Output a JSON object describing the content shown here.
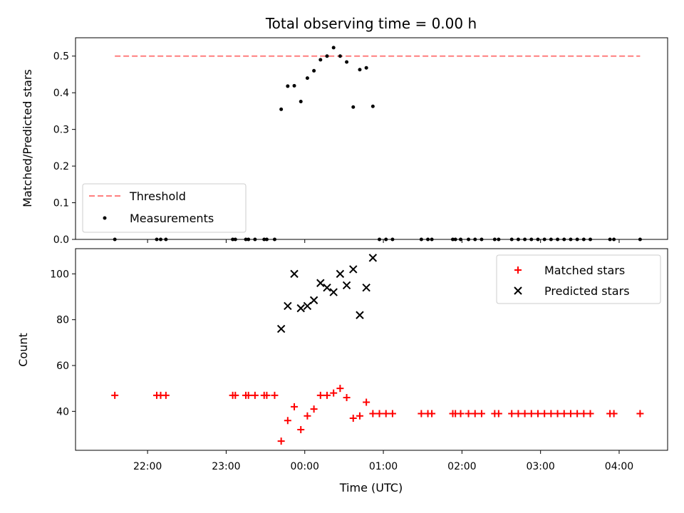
{
  "chart_data": [
    {
      "type": "scatter",
      "title": "Total observing time = 0.00 h",
      "xlabel": "",
      "ylabel": "Matched/Predicted stars",
      "xlim": [
        "21:05",
        "04:37"
      ],
      "ylim": [
        0,
        0.55
      ],
      "yticks": [
        "0.0",
        "0.1",
        "0.2",
        "0.3",
        "0.4",
        "0.5"
      ],
      "xticks": [
        "22:00",
        "23:00",
        "00:00",
        "01:00",
        "02:00",
        "03:00",
        "04:00"
      ],
      "legend_position": "lower-left",
      "threshold": {
        "name": "Threshold",
        "value": 0.5,
        "x_start": "21:35",
        "x_end": "04:16",
        "color": "#ff7f7f",
        "style": "dashed"
      },
      "series": [
        {
          "name": "Measurements",
          "color": "#000000",
          "marker": "dot",
          "points": [
            {
              "x": "21:35",
              "y": 0.0
            },
            {
              "x": "22:07",
              "y": 0.0
            },
            {
              "x": "22:10",
              "y": 0.0
            },
            {
              "x": "22:14",
              "y": 0.0
            },
            {
              "x": "23:05",
              "y": 0.0
            },
            {
              "x": "23:07",
              "y": 0.0
            },
            {
              "x": "23:15",
              "y": 0.0
            },
            {
              "x": "23:17",
              "y": 0.0
            },
            {
              "x": "23:22",
              "y": 0.0
            },
            {
              "x": "23:29",
              "y": 0.0
            },
            {
              "x": "23:31",
              "y": 0.0
            },
            {
              "x": "23:37",
              "y": 0.0
            },
            {
              "x": "23:42",
              "y": 0.355
            },
            {
              "x": "23:47",
              "y": 0.418
            },
            {
              "x": "23:52",
              "y": 0.419
            },
            {
              "x": "23:57",
              "y": 0.376
            },
            {
              "x": "00:02",
              "y": 0.44
            },
            {
              "x": "00:07",
              "y": 0.46
            },
            {
              "x": "00:12",
              "y": 0.49
            },
            {
              "x": "00:17",
              "y": 0.5
            },
            {
              "x": "00:22",
              "y": 0.523
            },
            {
              "x": "00:27",
              "y": 0.5
            },
            {
              "x": "00:32",
              "y": 0.484
            },
            {
              "x": "00:37",
              "y": 0.361
            },
            {
              "x": "00:42",
              "y": 0.463
            },
            {
              "x": "00:47",
              "y": 0.468
            },
            {
              "x": "00:52",
              "y": 0.363
            },
            {
              "x": "00:57",
              "y": 0.0
            },
            {
              "x": "01:02",
              "y": 0.0
            },
            {
              "x": "01:07",
              "y": 0.0
            },
            {
              "x": "01:29",
              "y": 0.0
            },
            {
              "x": "01:34",
              "y": 0.0
            },
            {
              "x": "01:37",
              "y": 0.0
            },
            {
              "x": "01:53",
              "y": 0.0
            },
            {
              "x": "01:55",
              "y": 0.0
            },
            {
              "x": "01:59",
              "y": 0.0
            },
            {
              "x": "02:05",
              "y": 0.0
            },
            {
              "x": "02:10",
              "y": 0.0
            },
            {
              "x": "02:15",
              "y": 0.0
            },
            {
              "x": "02:25",
              "y": 0.0
            },
            {
              "x": "02:28",
              "y": 0.0
            },
            {
              "x": "02:38",
              "y": 0.0
            },
            {
              "x": "02:43",
              "y": 0.0
            },
            {
              "x": "02:48",
              "y": 0.0
            },
            {
              "x": "02:53",
              "y": 0.0
            },
            {
              "x": "02:58",
              "y": 0.0
            },
            {
              "x": "03:03",
              "y": 0.0
            },
            {
              "x": "03:08",
              "y": 0.0
            },
            {
              "x": "03:13",
              "y": 0.0
            },
            {
              "x": "03:18",
              "y": 0.0
            },
            {
              "x": "03:23",
              "y": 0.0
            },
            {
              "x": "03:28",
              "y": 0.0
            },
            {
              "x": "03:33",
              "y": 0.0
            },
            {
              "x": "03:38",
              "y": 0.0
            },
            {
              "x": "03:53",
              "y": 0.0
            },
            {
              "x": "03:56",
              "y": 0.0
            },
            {
              "x": "04:16",
              "y": 0.0
            }
          ]
        }
      ]
    },
    {
      "type": "scatter",
      "title": "",
      "xlabel": "Time (UTC)",
      "ylabel": "Count",
      "xlim": [
        "21:05",
        "04:37"
      ],
      "ylim": [
        23,
        111
      ],
      "yticks": [
        "40",
        "60",
        "80",
        "100"
      ],
      "xticks": [
        "22:00",
        "23:00",
        "00:00",
        "01:00",
        "02:00",
        "03:00",
        "04:00"
      ],
      "legend_position": "upper-right",
      "series": [
        {
          "name": "Matched stars",
          "color": "#ff0000",
          "marker": "plus",
          "points": [
            {
              "x": "21:35",
              "y": 47
            },
            {
              "x": "22:07",
              "y": 47
            },
            {
              "x": "22:10",
              "y": 47
            },
            {
              "x": "22:14",
              "y": 47
            },
            {
              "x": "23:05",
              "y": 47
            },
            {
              "x": "23:07",
              "y": 47
            },
            {
              "x": "23:15",
              "y": 47
            },
            {
              "x": "23:17",
              "y": 47
            },
            {
              "x": "23:22",
              "y": 47
            },
            {
              "x": "23:29",
              "y": 47
            },
            {
              "x": "23:31",
              "y": 47
            },
            {
              "x": "23:37",
              "y": 47
            },
            {
              "x": "23:42",
              "y": 27
            },
            {
              "x": "23:47",
              "y": 36
            },
            {
              "x": "23:52",
              "y": 42
            },
            {
              "x": "23:57",
              "y": 32
            },
            {
              "x": "00:02",
              "y": 38
            },
            {
              "x": "00:07",
              "y": 41
            },
            {
              "x": "00:12",
              "y": 47
            },
            {
              "x": "00:17",
              "y": 47
            },
            {
              "x": "00:22",
              "y": 48
            },
            {
              "x": "00:27",
              "y": 50
            },
            {
              "x": "00:32",
              "y": 46
            },
            {
              "x": "00:37",
              "y": 37
            },
            {
              "x": "00:42",
              "y": 38
            },
            {
              "x": "00:47",
              "y": 44
            },
            {
              "x": "00:52",
              "y": 39
            },
            {
              "x": "00:57",
              "y": 39
            },
            {
              "x": "01:02",
              "y": 39
            },
            {
              "x": "01:07",
              "y": 39
            },
            {
              "x": "01:29",
              "y": 39
            },
            {
              "x": "01:34",
              "y": 39
            },
            {
              "x": "01:37",
              "y": 39
            },
            {
              "x": "01:53",
              "y": 39
            },
            {
              "x": "01:55",
              "y": 39
            },
            {
              "x": "01:59",
              "y": 39
            },
            {
              "x": "02:05",
              "y": 39
            },
            {
              "x": "02:10",
              "y": 39
            },
            {
              "x": "02:15",
              "y": 39
            },
            {
              "x": "02:25",
              "y": 39
            },
            {
              "x": "02:28",
              "y": 39
            },
            {
              "x": "02:38",
              "y": 39
            },
            {
              "x": "02:43",
              "y": 39
            },
            {
              "x": "02:48",
              "y": 39
            },
            {
              "x": "02:53",
              "y": 39
            },
            {
              "x": "02:58",
              "y": 39
            },
            {
              "x": "03:03",
              "y": 39
            },
            {
              "x": "03:08",
              "y": 39
            },
            {
              "x": "03:13",
              "y": 39
            },
            {
              "x": "03:18",
              "y": 39
            },
            {
              "x": "03:23",
              "y": 39
            },
            {
              "x": "03:28",
              "y": 39
            },
            {
              "x": "03:33",
              "y": 39
            },
            {
              "x": "03:38",
              "y": 39
            },
            {
              "x": "03:53",
              "y": 39
            },
            {
              "x": "03:56",
              "y": 39
            },
            {
              "x": "04:16",
              "y": 39
            }
          ]
        },
        {
          "name": "Predicted stars",
          "color": "#000000",
          "marker": "x",
          "points": [
            {
              "x": "23:42",
              "y": 76
            },
            {
              "x": "23:47",
              "y": 86
            },
            {
              "x": "23:52",
              "y": 100
            },
            {
              "x": "23:57",
              "y": 85
            },
            {
              "x": "00:02",
              "y": 86
            },
            {
              "x": "00:07",
              "y": 88.5
            },
            {
              "x": "00:12",
              "y": 96
            },
            {
              "x": "00:17",
              "y": 94
            },
            {
              "x": "00:22",
              "y": 92
            },
            {
              "x": "00:27",
              "y": 100
            },
            {
              "x": "00:32",
              "y": 95
            },
            {
              "x": "00:37",
              "y": 102
            },
            {
              "x": "00:42",
              "y": 82
            },
            {
              "x": "00:47",
              "y": 94
            },
            {
              "x": "00:52",
              "y": 107
            }
          ]
        }
      ]
    }
  ]
}
